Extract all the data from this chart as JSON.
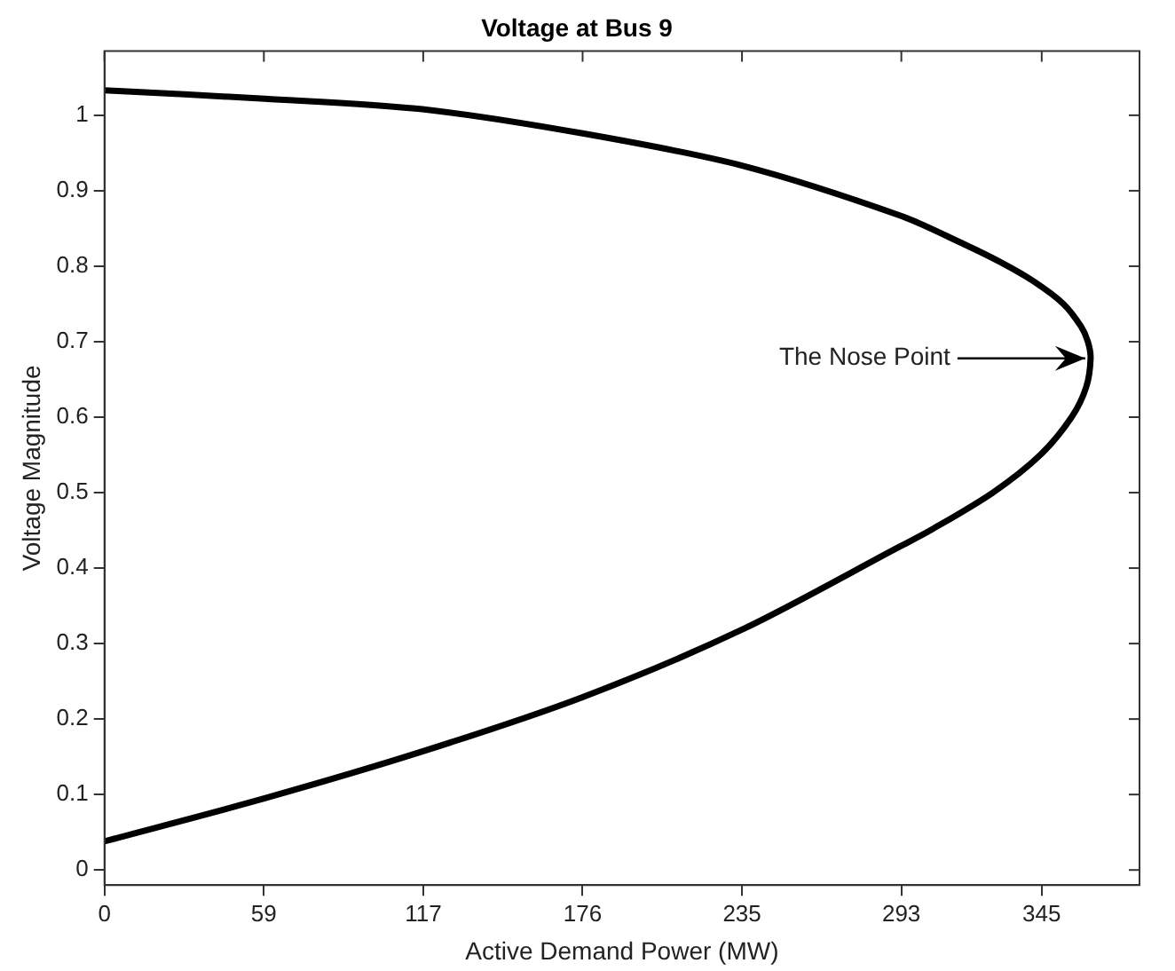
{
  "chart_data": {
    "type": "line",
    "title": "Voltage at Bus 9",
    "xlabel": "Active Demand Power (MW)",
    "ylabel": "Voltage Magnitude",
    "series": [
      {
        "color": "#000000",
        "x": [
          0,
          59,
          117,
          176,
          235,
          293,
          316.5,
          330,
          342,
          353,
          359.5,
          362,
          363,
          361.4,
          356,
          344.5,
          327,
          304,
          293,
          235,
          176,
          117,
          59,
          0
        ],
        "values": [
          1.033,
          1.022,
          1.008,
          0.976,
          0.933,
          0.867,
          0.829,
          0.805,
          0.78,
          0.75,
          0.72,
          0.7,
          0.678,
          0.64,
          0.6,
          0.55,
          0.5,
          0.45,
          0.429,
          0.319,
          0.229,
          0.157,
          0.095,
          0.038
        ]
      }
    ],
    "xlim": [
      0,
      381
    ],
    "ylim": [
      -0.02,
      1.085
    ],
    "xticks": [
      0,
      {
        "value": 58.67,
        "label": "59"
      },
      {
        "value": 117.33,
        "label": "117"
      },
      176,
      {
        "value": 234.67,
        "label": "235"
      },
      {
        "value": 293.33,
        "label": "293"
      },
      345
    ],
    "yticks": [
      0,
      0.1,
      0.2,
      0.3,
      0.4,
      0.5,
      0.6,
      0.7,
      0.8,
      0.9,
      1
    ],
    "annotations": [
      {
        "text": "The Nose Point",
        "x": 363,
        "y": 0.678
      }
    ],
    "grid": false,
    "legend": false,
    "marker": "none",
    "line_style": "solid"
  }
}
